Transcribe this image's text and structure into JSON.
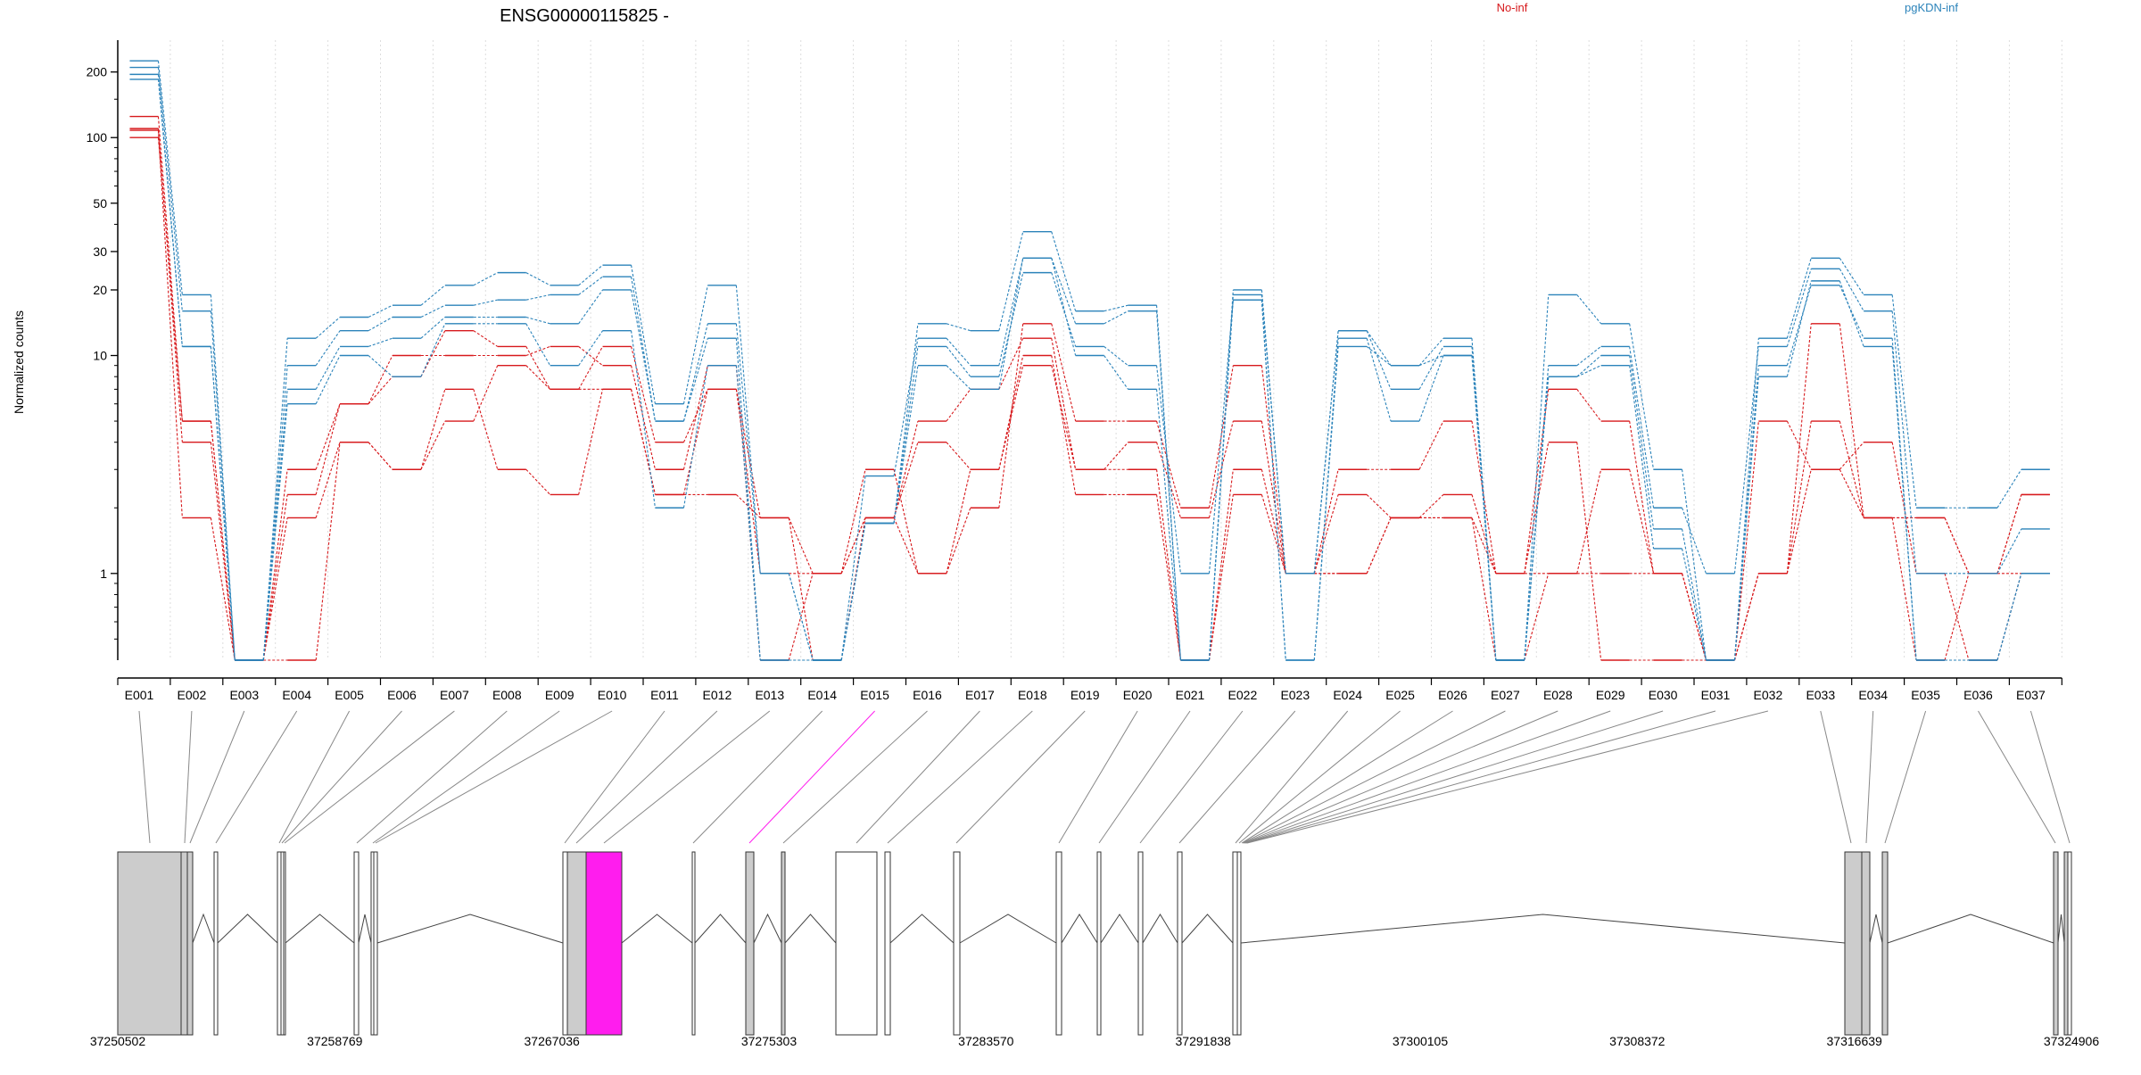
{
  "chart_data": {
    "type": "line",
    "title": "ENSG00000115825 -",
    "ylabel": "Normalized counts",
    "xlabel": "",
    "yscale": "log",
    "ylim": [
      0.4,
      280
    ],
    "yticks": [
      1,
      10,
      20,
      30,
      50,
      100,
      200
    ],
    "grid": "vertical dotted",
    "legend_placement": "top",
    "legend": [
      {
        "name": "No-inf",
        "color": "#d7191c"
      },
      {
        "name": "pgKDN-inf",
        "color": "#2b83ba"
      }
    ],
    "zero_value_floor": 0.4,
    "categories": [
      "E001",
      "E002",
      "E003",
      "E004",
      "E005",
      "E006",
      "E007",
      "E008",
      "E009",
      "E010",
      "E011",
      "E012",
      "E013",
      "E014",
      "E015",
      "E016",
      "E017",
      "E018",
      "E019",
      "E020",
      "E021",
      "E022",
      "E023",
      "E024",
      "E025",
      "E026",
      "E027",
      "E028",
      "E029",
      "E030",
      "E031",
      "E032",
      "E033",
      "E034",
      "E035",
      "E036",
      "E037"
    ],
    "series": [
      {
        "group": "No-inf",
        "color": "#d7191c",
        "values": [
          125,
          5,
          0.4,
          3,
          6,
          8,
          13,
          11,
          7,
          11,
          4,
          7,
          1,
          1,
          3,
          1,
          2,
          14,
          5,
          5,
          2,
          9,
          1,
          3,
          3,
          5,
          1,
          1,
          1,
          1,
          0.4,
          1,
          14,
          1.8,
          1.8,
          1,
          2.3
        ]
      },
      {
        "group": "No-inf",
        "color": "#d7191c",
        "values": [
          110,
          4,
          0.4,
          2.3,
          6,
          10,
          10,
          10,
          11,
          9,
          3,
          9,
          0.4,
          1,
          1.8,
          5,
          7,
          12,
          3,
          4,
          1.8,
          5,
          1,
          1,
          1.8,
          2.3,
          1,
          7,
          5,
          1,
          0.4,
          5,
          3,
          4,
          1,
          0.4,
          1
        ]
      },
      {
        "group": "No-inf",
        "color": "#d7191c",
        "values": [
          108,
          1.8,
          0.4,
          1.8,
          4,
          3,
          7,
          3,
          2.3,
          7,
          2.3,
          2.3,
          1.8,
          1,
          1.8,
          4,
          3,
          10,
          2.3,
          2.3,
          0.4,
          3,
          1,
          2.3,
          1.8,
          1.8,
          1,
          4,
          0.4,
          0.4,
          0.4,
          1,
          5,
          1.8,
          1.8,
          1,
          1
        ]
      },
      {
        "group": "No-inf",
        "color": "#d7191c",
        "values": [
          100,
          5,
          0.4,
          0.4,
          4,
          3,
          5,
          9,
          7,
          7,
          2.3,
          7,
          1.8,
          0.4,
          1.8,
          1,
          3,
          9,
          3,
          3,
          0.4,
          2.3,
          1,
          1,
          1.8,
          1.8,
          0.4,
          1,
          3,
          1,
          0.4,
          1,
          3,
          1.8,
          0.4,
          1,
          2.3
        ]
      },
      {
        "group": "pgKDN-inf",
        "color": "#2b83ba",
        "values": [
          225,
          19,
          0.4,
          12,
          15,
          17,
          21,
          24,
          21,
          26,
          6,
          21,
          1,
          0.4,
          1.7,
          14,
          13,
          37,
          16,
          17,
          0.4,
          20,
          1,
          13,
          9,
          12,
          0.4,
          19,
          14,
          3,
          0.4,
          12,
          28,
          19,
          2,
          2,
          3
        ]
      },
      {
        "group": "pgKDN-inf",
        "color": "#2b83ba",
        "values": [
          210,
          16,
          0.4,
          9,
          13,
          15,
          17,
          18,
          19,
          23,
          5,
          14,
          1,
          0.4,
          2.8,
          12,
          9,
          28,
          14,
          16,
          0.4,
          19,
          1,
          13,
          7,
          11,
          0.4,
          9,
          11,
          2,
          1,
          11,
          25,
          16,
          1,
          1,
          1.6
        ]
      },
      {
        "group": "pgKDN-inf",
        "color": "#2b83ba",
        "values": [
          195,
          11,
          0.4,
          7,
          11,
          12,
          15,
          15,
          14,
          20,
          5,
          12,
          0.4,
          0.4,
          1.7,
          11,
          8,
          24,
          11,
          9,
          1,
          18,
          0.4,
          12,
          5,
          10,
          0.4,
          8,
          10,
          1.6,
          0.4,
          8,
          22,
          11,
          0.4,
          0.4,
          1
        ]
      },
      {
        "group": "pgKDN-inf",
        "color": "#2b83ba",
        "values": [
          185,
          11,
          0.4,
          6,
          10,
          8,
          14,
          14,
          9,
          13,
          2,
          9,
          0.4,
          0.4,
          1.7,
          9,
          7,
          28,
          10,
          7,
          0.4,
          18,
          0.4,
          11,
          9,
          10,
          0.4,
          8,
          9,
          1.3,
          0.4,
          9,
          21,
          12,
          0.4,
          0.4,
          1
        ]
      }
    ],
    "genomic_coordinates": [
      "37250502",
      "37258769",
      "37267036",
      "37275303",
      "37283570",
      "37291838",
      "37300105",
      "37308372",
      "37316639",
      "37324906"
    ],
    "gene_model": {
      "strand": "-",
      "highlighted_exon": "E015",
      "highlight_color": "#ff1dee",
      "exon_fill": "#cccccc",
      "intron_color": "#555555"
    }
  }
}
